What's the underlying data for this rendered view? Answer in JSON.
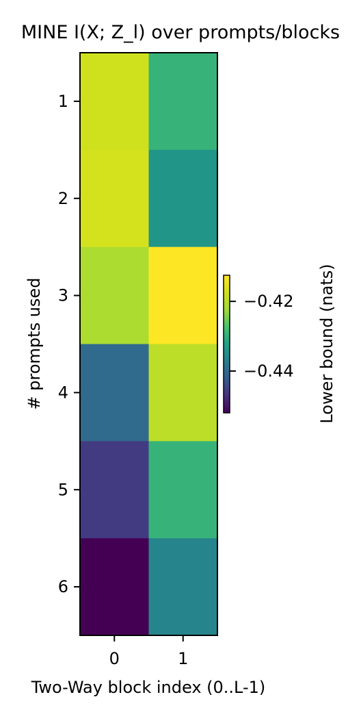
{
  "chart_data": {
    "type": "heatmap",
    "title": "MINE  I(X; Z_l) over prompts/blocks",
    "xlabel": "Two-Way block index (0..L-1)",
    "ylabel": "# prompts used",
    "x_categories": [
      "0",
      "1"
    ],
    "y_categories": [
      "1",
      "2",
      "3",
      "4",
      "5",
      "6"
    ],
    "values": [
      [
        -0.4175,
        -0.4295
      ],
      [
        -0.417,
        -0.434
      ],
      [
        -0.421,
        -0.4125
      ],
      [
        -0.44,
        -0.4195
      ],
      [
        -0.446,
        -0.4295
      ],
      [
        -0.452,
        -0.4365
      ]
    ],
    "colorbar": {
      "label": "Lower bound (nats)",
      "ticks": [
        -0.42,
        -0.44
      ],
      "tick_labels": [
        "−0.42",
        "−0.44"
      ],
      "range": [
        -0.452,
        -0.4125
      ]
    },
    "colormap": "viridis"
  }
}
